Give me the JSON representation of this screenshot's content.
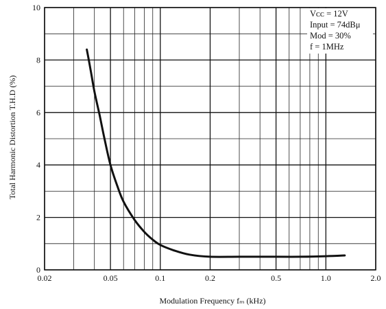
{
  "chart_data": {
    "type": "line",
    "title": "",
    "xlabel": "Modulation Frequency fₘ (kHz)",
    "ylabel": "Total Harmonic Distortion T.H.D (%)",
    "x_scale": "log",
    "xlim": [
      0.02,
      2.0
    ],
    "ylim": [
      0,
      10
    ],
    "grid": true,
    "x_ticks": [
      {
        "value": 0.02,
        "label": "0.02"
      },
      {
        "value": 0.05,
        "label": "0.05"
      },
      {
        "value": 0.1,
        "label": "0.1"
      },
      {
        "value": 0.2,
        "label": "0.2"
      },
      {
        "value": 0.5,
        "label": "0.5"
      },
      {
        "value": 1.0,
        "label": "1.0"
      },
      {
        "value": 2.0,
        "label": "2.0"
      }
    ],
    "x_minor_grid": [
      0.03,
      0.04,
      0.05,
      0.06,
      0.07,
      0.08,
      0.09,
      0.3,
      0.4,
      0.6,
      0.7,
      0.8,
      0.9
    ],
    "y_ticks": [
      {
        "value": 0,
        "label": "0"
      },
      {
        "value": 2,
        "label": "2"
      },
      {
        "value": 4,
        "label": "4"
      },
      {
        "value": 6,
        "label": "6"
      },
      {
        "value": 8,
        "label": "8"
      },
      {
        "value": 10,
        "label": "10"
      }
    ],
    "y_minor_grid": [
      1,
      3,
      5,
      7,
      9
    ],
    "annotations": [
      "Vᴄᴄ = 12V",
      "Input = 74dBμ",
      "Mod = 30%",
      "f = 1MHz"
    ],
    "series": [
      {
        "x": [
          0.036,
          0.038,
          0.04,
          0.043,
          0.046,
          0.05,
          0.055,
          0.06,
          0.07,
          0.08,
          0.09,
          0.1,
          0.12,
          0.15,
          0.2,
          0.3,
          0.5,
          0.7,
          1.0,
          1.3
        ],
        "y": [
          8.4,
          7.6,
          6.8,
          5.9,
          5.0,
          4.0,
          3.2,
          2.6,
          1.9,
          1.45,
          1.15,
          0.95,
          0.75,
          0.58,
          0.5,
          0.5,
          0.5,
          0.5,
          0.52,
          0.55
        ]
      }
    ]
  }
}
